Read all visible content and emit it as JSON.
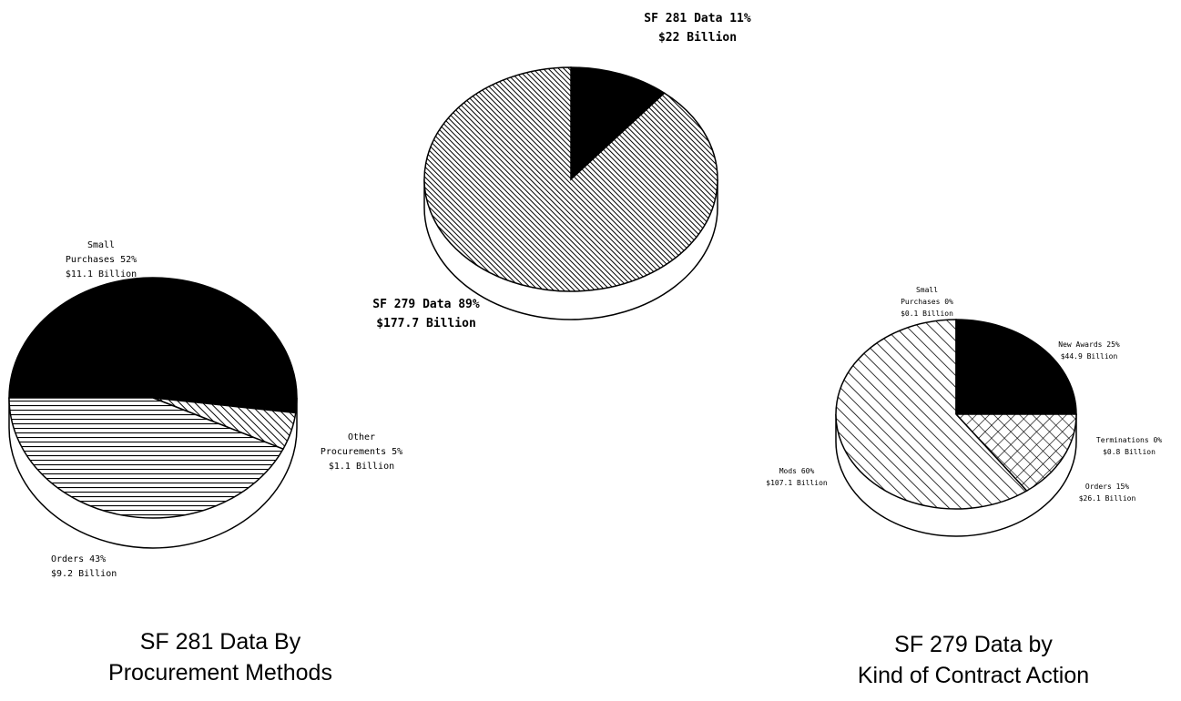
{
  "chart_data": [
    {
      "type": "pie",
      "title": "",
      "slices": [
        {
          "label_line1": "SF 281 Data 11%",
          "label_line2": "$22 Billion",
          "percent": 11,
          "value_billion": 22,
          "fill": "solid"
        },
        {
          "label_line1": "SF 279 Data 89%",
          "label_line2": "$177.7 Billion",
          "percent": 89,
          "value_billion": 177.7,
          "fill": "fine-diagonal-hatch"
        }
      ]
    },
    {
      "type": "pie",
      "title": "SF 281 Data By",
      "subtitle": "Procurement Methods",
      "slices": [
        {
          "label_line1": "Small",
          "label_line2": "Purchases 52%",
          "label_line3": "$11.1 Billion",
          "percent": 52,
          "value_billion": 11.1,
          "fill": "solid"
        },
        {
          "label_line1": "Other",
          "label_line2": "Procurements 5%",
          "label_line3": "$1.1 Billion",
          "percent": 5,
          "value_billion": 1.1,
          "fill": "diagonal-hatch"
        },
        {
          "label_line1": "Orders 43%",
          "label_line2": "$9.2 Billion",
          "percent": 43,
          "value_billion": 9.2,
          "fill": "horizontal-lines"
        }
      ]
    },
    {
      "type": "pie",
      "title": "SF 279 Data by",
      "subtitle": "Kind of Contract Action",
      "slices": [
        {
          "label_line1": "New Awards 25%",
          "label_line2": "$44.9 Billion",
          "percent": 25,
          "value_billion": 44.9,
          "fill": "solid"
        },
        {
          "label_line1": "Terminations 0%",
          "label_line2": "$0.8 Billion",
          "percent": 0,
          "value_billion": 0.8,
          "fill": "none"
        },
        {
          "label_line1": "Orders 15%",
          "label_line2": "$26.1 Billion",
          "percent": 15,
          "value_billion": 26.1,
          "fill": "crosshatch"
        },
        {
          "label_line1": "Mods 60%",
          "label_line2": "$107.1 Billion",
          "percent": 60,
          "value_billion": 107.1,
          "fill": "wide-diagonal-hatch"
        },
        {
          "label_line1": "Small",
          "label_line2": "Purchases 0%",
          "label_line3": "$0.1 Billion",
          "percent": 0,
          "value_billion": 0.1,
          "fill": "none"
        }
      ]
    }
  ]
}
